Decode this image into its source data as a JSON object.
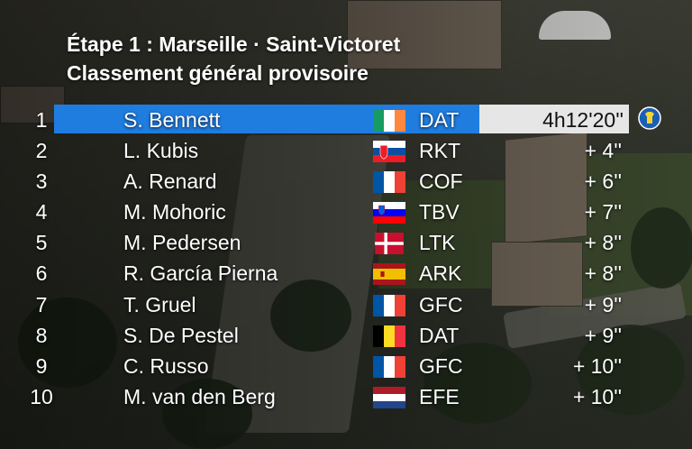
{
  "header": {
    "stage_line": "Étape 1 : Marseille · Saint-Victoret",
    "ranking_line": "Classement général provisoire"
  },
  "standings": [
    {
      "pos": "1",
      "name": "S. Bennett",
      "flag": "ireland-flag-icon",
      "team": "DAT",
      "gap": "4h12'20''"
    },
    {
      "pos": "2",
      "name": "L. Kubis",
      "flag": "slovakia-flag-icon",
      "team": "RKT",
      "gap": "+ 4''"
    },
    {
      "pos": "3",
      "name": "A. Renard",
      "flag": "france-flag-icon",
      "team": "COF",
      "gap": "+ 6''"
    },
    {
      "pos": "4",
      "name": "M. Mohoric",
      "flag": "slovenia-flag-icon",
      "team": "TBV",
      "gap": "+ 7''"
    },
    {
      "pos": "5",
      "name": "M. Pedersen",
      "flag": "denmark-flag-icon",
      "team": "LTK",
      "gap": "+ 8''"
    },
    {
      "pos": "6",
      "name": "R. García Pierna",
      "flag": "spain-flag-icon",
      "team": "ARK",
      "gap": "+ 8''"
    },
    {
      "pos": "7",
      "name": "T. Gruel",
      "flag": "france-flag-icon",
      "team": "GFC",
      "gap": "+ 9''"
    },
    {
      "pos": "8",
      "name": "S. De Pestel",
      "flag": "belgium-flag-icon",
      "team": "DAT",
      "gap": "+ 9''"
    },
    {
      "pos": "9",
      "name": "C. Russo",
      "flag": "france-flag-icon",
      "team": "GFC",
      "gap": "+ 10''"
    },
    {
      "pos": "10",
      "name": "M. van den Berg",
      "flag": "netherlands-flag-icon",
      "team": "EFE",
      "gap": "+ 10''"
    }
  ],
  "colors": {
    "leader_highlight": "#1f7de0",
    "leader_time_box": "#e6e6e6",
    "text": "#ffffff"
  },
  "icons": {
    "leader_badge": "yellow-jersey-badge-icon"
  }
}
